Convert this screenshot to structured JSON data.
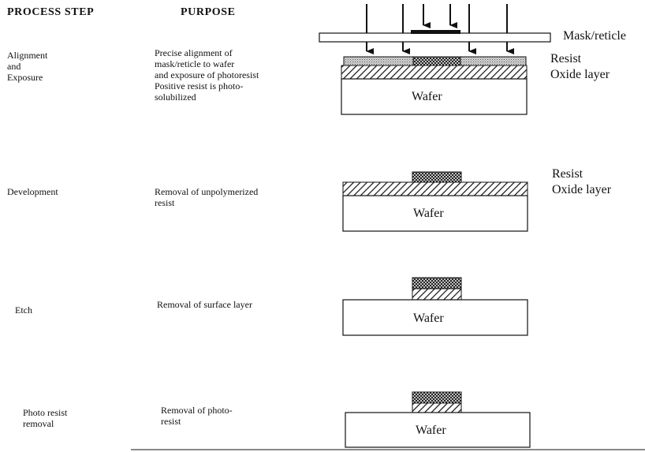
{
  "headers": {
    "process_step": "PROCESS  STEP",
    "purpose": "PURPOSE"
  },
  "rows": [
    {
      "step": "Alignment\nand\nExposure",
      "purpose": "Precise alignment of\nmask/reticle to wafer\nand exposure of photoresist\nPositive resist is photo-\nsolubilized"
    },
    {
      "step": "Development",
      "purpose": "Removal of unpolymerized\nresist"
    },
    {
      "step": "Etch",
      "purpose": "Removal of surface layer"
    },
    {
      "step": "Photo resist\nremoval",
      "purpose": "Removal of photo-\nresist"
    }
  ],
  "labels": {
    "mask": "Mask/reticle",
    "resist": "Resist",
    "oxide": "Oxide layer",
    "wafer": "Wafer"
  }
}
